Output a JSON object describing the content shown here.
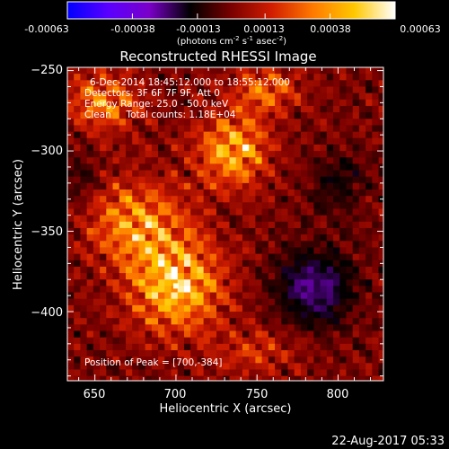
{
  "colorbar": {
    "tick_labels": [
      "-0.00063",
      "-0.00038",
      "-0.00013",
      "0.00013",
      "0.00038",
      "0.00063"
    ],
    "range": [
      -0.00063,
      0.00063
    ],
    "colors": [
      "#0000ff",
      "#5a00ff",
      "#7a00c8",
      "#000000",
      "#7a0000",
      "#d21e00",
      "#ff7a00",
      "#ffc800",
      "#ffffff"
    ]
  },
  "units_prefix": "(photons cm",
  "units_exp1": "-2",
  "units_mid1": " s",
  "units_exp2": "-1",
  "units_mid2": " asec",
  "units_exp3": "-2",
  "units_suffix": ")",
  "plot_title": "Reconstructed RHESSI Image",
  "annotations": [
    "6-Dec-2014 18:45:12.000 to 18:55:12.000",
    "Detectors: 3F 6F 7F 9F, Att 0",
    "Energy Range: 25.0 - 50.0 keV",
    "Clean     Total counts: 1.18E+04"
  ],
  "peak_label": "Position of Peak = [700,-384]",
  "timestamp": "22-Aug-2017 05:33",
  "chart_data": {
    "type": "heatmap",
    "title": "Reconstructed RHESSI Image",
    "xlabel": "Heliocentric X (arcsec)",
    "ylabel": "Heliocentric Y (arcsec)",
    "xlim": [
      633,
      828
    ],
    "ylim": [
      -443,
      -248
    ],
    "x_ticks": [
      650,
      700,
      750,
      800
    ],
    "y_ticks": [
      -250,
      -300,
      -350,
      -400
    ],
    "x_tick_labels": [
      "650",
      "700",
      "750",
      "800"
    ],
    "y_tick_labels": [
      "−250",
      "−300",
      "−350",
      "−400"
    ],
    "grid": false,
    "sources": [
      {
        "x": 700,
        "y": -384,
        "amp": 1.0,
        "sx": 28,
        "sy": 28
      },
      {
        "x": 675,
        "y": -345,
        "amp": 0.75,
        "sx": 30,
        "sy": 25
      },
      {
        "x": 735,
        "y": -300,
        "amp": 0.85,
        "sx": 22,
        "sy": 22
      },
      {
        "x": 655,
        "y": -270,
        "amp": 0.65,
        "sx": 22,
        "sy": 18
      },
      {
        "x": 755,
        "y": -262,
        "amp": 0.55,
        "sx": 20,
        "sy": 14
      },
      {
        "x": 750,
        "y": -425,
        "amp": 0.35,
        "sx": 25,
        "sy": 15
      },
      {
        "x": 785,
        "y": -385,
        "amp": -0.55,
        "sx": 25,
        "sy": 25
      },
      {
        "x": 800,
        "y": -320,
        "amp": -0.25,
        "sx": 20,
        "sy": 20
      },
      {
        "x": 640,
        "y": -320,
        "amp": -0.2,
        "sx": 15,
        "sy": 25
      }
    ],
    "peak": {
      "x": 700,
      "y": -384
    }
  }
}
